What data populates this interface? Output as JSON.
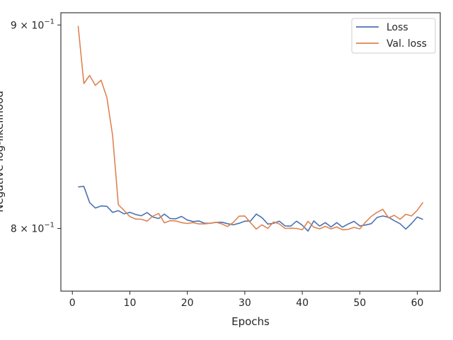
{
  "chart_data": {
    "type": "line",
    "title": "",
    "xlabel": "Epochs",
    "ylabel": "Negative log-likelihood",
    "yscale": "log",
    "xlim": [
      -2,
      64
    ],
    "ylim": [
      0.7715,
      0.9064
    ],
    "xticks": [
      0,
      10,
      20,
      30,
      40,
      50,
      60
    ],
    "xtick_labels": [
      "0",
      "10",
      "20",
      "30",
      "40",
      "50",
      "60"
    ],
    "yticks": [
      0.8,
      0.9
    ],
    "ytick_labels": [
      {
        "base": "8",
        "exp": "−1",
        "value": 0.8
      },
      {
        "base": "9",
        "exp": "−1",
        "value": 0.9
      }
    ],
    "ytick_separator": " × 10",
    "grid": false,
    "legend_position": "top-right",
    "x": [
      1,
      2,
      3,
      4,
      5,
      6,
      7,
      8,
      9,
      10,
      11,
      12,
      13,
      14,
      15,
      16,
      17,
      18,
      19,
      20,
      21,
      22,
      23,
      24,
      25,
      26,
      27,
      28,
      29,
      30,
      31,
      32,
      33,
      34,
      35,
      36,
      37,
      38,
      39,
      40,
      41,
      42,
      43,
      44,
      45,
      46,
      47,
      48,
      49,
      50,
      51,
      52,
      53,
      54,
      55,
      56,
      57,
      58,
      59,
      60,
      61
    ],
    "series": [
      {
        "name": "Loss",
        "color": "#4c72b0",
        "values": [
          0.8195,
          0.8197,
          0.8121,
          0.8095,
          0.8105,
          0.8103,
          0.8075,
          0.8083,
          0.8068,
          0.8075,
          0.8065,
          0.8059,
          0.8074,
          0.8053,
          0.8046,
          0.8067,
          0.8046,
          0.8045,
          0.8056,
          0.8039,
          0.8032,
          0.8035,
          0.8024,
          0.8024,
          0.8028,
          0.8029,
          0.8022,
          0.8017,
          0.8024,
          0.8034,
          0.8035,
          0.8067,
          0.805,
          0.802,
          0.8024,
          0.8034,
          0.8012,
          0.8011,
          0.8034,
          0.8015,
          0.7988,
          0.8035,
          0.8011,
          0.8027,
          0.8007,
          0.8027,
          0.8006,
          0.8021,
          0.8033,
          0.8012,
          0.8016,
          0.8022,
          0.8051,
          0.8058,
          0.8052,
          0.8036,
          0.8022,
          0.7997,
          0.8023,
          0.8053,
          0.8042
        ]
      },
      {
        "name": "Val. loss",
        "color": "#dd8452",
        "values": [
          0.8995,
          0.87,
          0.8741,
          0.8691,
          0.8717,
          0.863,
          0.8442,
          0.8111,
          0.8084,
          0.8055,
          0.8044,
          0.8043,
          0.8034,
          0.8057,
          0.807,
          0.8026,
          0.8036,
          0.8035,
          0.8027,
          0.8023,
          0.8027,
          0.8021,
          0.8021,
          0.8024,
          0.8029,
          0.8021,
          0.8009,
          0.8028,
          0.8057,
          0.8058,
          0.8026,
          0.7997,
          0.8017,
          0.8,
          0.803,
          0.8021,
          0.8,
          0.8001,
          0.8,
          0.7994,
          0.8033,
          0.8006,
          0.7998,
          0.801,
          0.7998,
          0.8007,
          0.7994,
          0.7996,
          0.8005,
          0.7998,
          0.8029,
          0.8056,
          0.8075,
          0.8089,
          0.8049,
          0.8061,
          0.8043,
          0.8066,
          0.8058,
          0.8085,
          0.8122
        ]
      }
    ]
  }
}
